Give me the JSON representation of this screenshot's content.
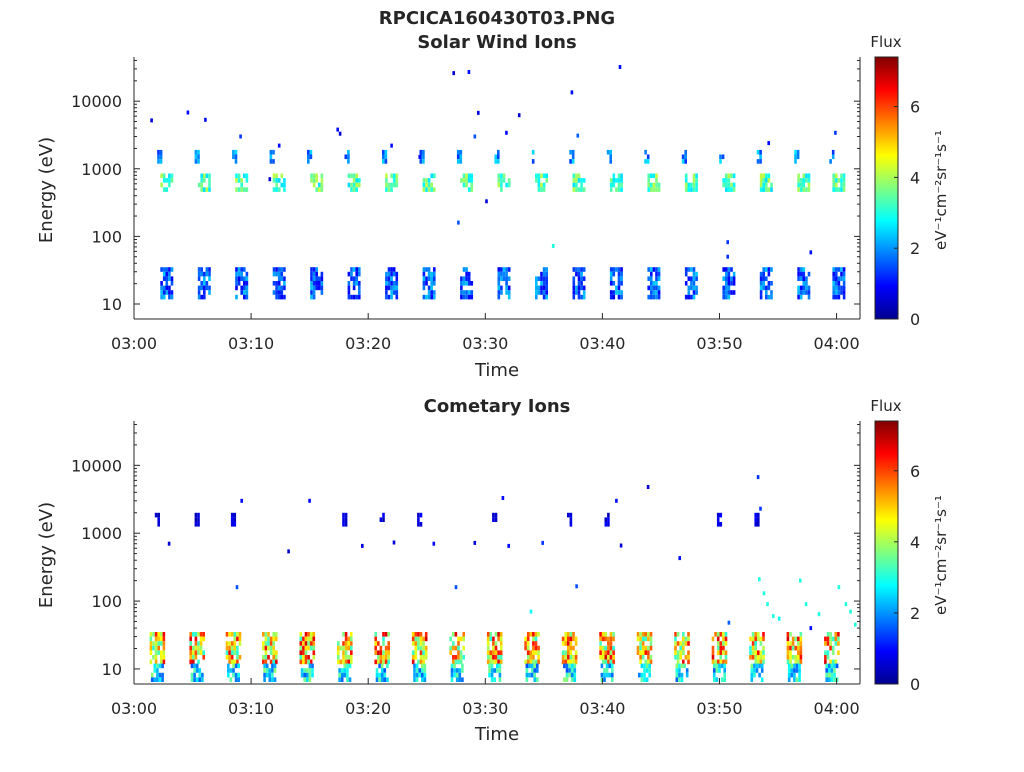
{
  "figure_title": "RPCICA160430T03.PNG",
  "colorscale": [
    "#00008f",
    "#0000ff",
    "#0080ff",
    "#00ffff",
    "#80ff80",
    "#ffff00",
    "#ff8000",
    "#ff0000",
    "#800000"
  ],
  "chart_data": [
    {
      "type": "heatmap",
      "title": "Solar Wind Ions",
      "xlabel": "Time",
      "ylabel": "Energy (eV)",
      "x_range": [
        "03:00",
        "04:02"
      ],
      "x_ticks": [
        "03:00",
        "03:10",
        "03:20",
        "03:30",
        "03:40",
        "03:50",
        "04:00"
      ],
      "y_scale": "log",
      "y_range": [
        6,
        45000
      ],
      "y_ticks": [
        "10",
        "100",
        "1000",
        "10000"
      ],
      "colorbar": {
        "title": "Flux",
        "label": "eV⁻¹cm⁻²sr⁻¹s⁻¹",
        "range": [
          0,
          7.4
        ],
        "ticks": [
          "0",
          "2",
          "4",
          "6"
        ]
      },
      "sweep_start_minutes": [
        2.8,
        6.0,
        9.2,
        12.4,
        15.6,
        18.8,
        22.0,
        25.2,
        28.4,
        31.6,
        34.8,
        38.0,
        41.2,
        44.4,
        47.6,
        50.8,
        54.0,
        57.2,
        60.2
      ],
      "bands": [
        {
          "name": "solar_wind_peak",
          "energy": [
            480,
            850
          ],
          "flux": [
            2.5,
            4.2
          ]
        },
        {
          "name": "solar_wind_alpha",
          "energy": [
            1200,
            1900
          ],
          "flux": [
            1.2,
            2.6
          ]
        },
        {
          "name": "low_energy",
          "energy": [
            12,
            35
          ],
          "flux": [
            0.8,
            2.4
          ]
        }
      ],
      "sparse_points": [
        {
          "t": 1.5,
          "e": 5200,
          "f": 0.6
        },
        {
          "t": 4.6,
          "e": 6800,
          "f": 1.0
        },
        {
          "t": 6.1,
          "e": 5300,
          "f": 1.0
        },
        {
          "t": 9.1,
          "e": 3000,
          "f": 1.3
        },
        {
          "t": 12.4,
          "e": 2200,
          "f": 1.0
        },
        {
          "t": 11.6,
          "e": 700,
          "f": 0.5
        },
        {
          "t": 17.4,
          "e": 3800,
          "f": 1.0
        },
        {
          "t": 17.6,
          "e": 3300,
          "f": 0.6
        },
        {
          "t": 22.0,
          "e": 2200,
          "f": 1.0
        },
        {
          "t": 24.4,
          "e": 1500,
          "f": 1.0
        },
        {
          "t": 27.3,
          "e": 26000,
          "f": 0.5
        },
        {
          "t": 28.6,
          "e": 27000,
          "f": 1.0
        },
        {
          "t": 29.4,
          "e": 6700,
          "f": 0.6
        },
        {
          "t": 29.1,
          "e": 3000,
          "f": 1.5
        },
        {
          "t": 30.1,
          "e": 330,
          "f": 0.6
        },
        {
          "t": 31.8,
          "e": 3400,
          "f": 1.0
        },
        {
          "t": 32.9,
          "e": 6200,
          "f": 0.5
        },
        {
          "t": 27.7,
          "e": 160,
          "f": 1.5
        },
        {
          "t": 35.8,
          "e": 72,
          "f": 3.0
        },
        {
          "t": 37.4,
          "e": 13500,
          "f": 1.0
        },
        {
          "t": 41.5,
          "e": 32000,
          "f": 1.0
        },
        {
          "t": 50.7,
          "e": 82,
          "f": 1.3
        },
        {
          "t": 50.7,
          "e": 50,
          "f": 1.3
        },
        {
          "t": 54.2,
          "e": 2400,
          "f": 1.0
        },
        {
          "t": 57.8,
          "e": 58,
          "f": 1.0
        },
        {
          "t": 59.9,
          "e": 3400,
          "f": 1.3
        },
        {
          "t": 37.9,
          "e": 3100,
          "f": 1.6
        }
      ]
    },
    {
      "type": "heatmap",
      "title": "Cometary Ions",
      "xlabel": "Time",
      "ylabel": "Energy (eV)",
      "x_range": [
        "03:00",
        "04:02"
      ],
      "x_ticks": [
        "03:00",
        "03:10",
        "03:20",
        "03:30",
        "03:40",
        "03:50",
        "04:00"
      ],
      "y_scale": "log",
      "y_range": [
        6,
        45000
      ],
      "y_ticks": [
        "10",
        "100",
        "1000",
        "10000"
      ],
      "colorbar": {
        "title": "Flux",
        "label": "eV⁻¹cm⁻²sr⁻¹s⁻¹",
        "range": [
          0,
          7.4
        ],
        "ticks": [
          "0",
          "2",
          "4",
          "6"
        ]
      },
      "sweep_start_minutes": [
        2.0,
        5.4,
        8.5,
        11.6,
        14.8,
        18.0,
        21.2,
        24.4,
        27.6,
        30.8,
        34.0,
        37.2,
        40.4,
        43.6,
        46.8,
        50.0,
        53.2,
        56.4,
        59.6
      ],
      "bands": [
        {
          "name": "cometary_core",
          "energy": [
            12,
            35
          ],
          "flux": [
            3.0,
            6.8
          ]
        },
        {
          "name": "cometary_tail",
          "energy": [
            7,
            12
          ],
          "flux": [
            1.5,
            3.8
          ]
        },
        {
          "name": "high_energy_traces",
          "energy": [
            1300,
            2000
          ],
          "flux": [
            0.3,
            1.0
          ]
        }
      ],
      "sparse_points": [
        {
          "t": 3.0,
          "e": 700,
          "f": 0.6
        },
        {
          "t": 8.8,
          "e": 160,
          "f": 1.5
        },
        {
          "t": 9.2,
          "e": 3000,
          "f": 1.0
        },
        {
          "t": 13.2,
          "e": 540,
          "f": 0.5
        },
        {
          "t": 15.0,
          "e": 3000,
          "f": 1.0
        },
        {
          "t": 19.5,
          "e": 650,
          "f": 0.6
        },
        {
          "t": 22.2,
          "e": 730,
          "f": 0.6
        },
        {
          "t": 25.6,
          "e": 700,
          "f": 1.0
        },
        {
          "t": 27.5,
          "e": 160,
          "f": 1.5
        },
        {
          "t": 29.1,
          "e": 720,
          "f": 0.6
        },
        {
          "t": 31.5,
          "e": 3300,
          "f": 1.0
        },
        {
          "t": 32.0,
          "e": 650,
          "f": 1.0
        },
        {
          "t": 33.9,
          "e": 70,
          "f": 2.8
        },
        {
          "t": 34.9,
          "e": 720,
          "f": 1.3
        },
        {
          "t": 37.8,
          "e": 165,
          "f": 1.5
        },
        {
          "t": 41.2,
          "e": 3000,
          "f": 1.0
        },
        {
          "t": 41.6,
          "e": 660,
          "f": 0.6
        },
        {
          "t": 43.9,
          "e": 4800,
          "f": 0.6
        },
        {
          "t": 46.6,
          "e": 430,
          "f": 1.0
        },
        {
          "t": 50.8,
          "e": 48,
          "f": 1.6
        },
        {
          "t": 53.3,
          "e": 6700,
          "f": 1.3
        },
        {
          "t": 53.5,
          "e": 2300,
          "f": 1.3
        },
        {
          "t": 53.4,
          "e": 210,
          "f": 3.0
        },
        {
          "t": 53.8,
          "e": 130,
          "f": 3.0
        },
        {
          "t": 54.1,
          "e": 90,
          "f": 3.0
        },
        {
          "t": 54.6,
          "e": 60,
          "f": 3.0
        },
        {
          "t": 56.9,
          "e": 200,
          "f": 3.0
        },
        {
          "t": 57.4,
          "e": 90,
          "f": 3.0
        },
        {
          "t": 57.8,
          "e": 40,
          "f": 1.0
        },
        {
          "t": 60.2,
          "e": 160,
          "f": 3.0
        },
        {
          "t": 60.8,
          "e": 90,
          "f": 3.0
        },
        {
          "t": 61.2,
          "e": 70,
          "f": 3.0
        },
        {
          "t": 61.6,
          "e": 45,
          "f": 3.0
        },
        {
          "t": 58.5,
          "e": 64,
          "f": 3.0
        },
        {
          "t": 55.1,
          "e": 55,
          "f": 2.8
        }
      ]
    }
  ]
}
